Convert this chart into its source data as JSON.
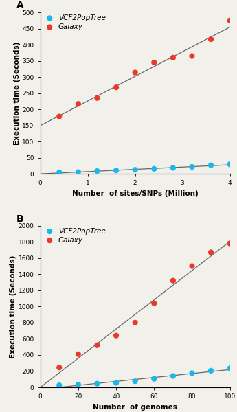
{
  "panel_A": {
    "title": "A",
    "xlabel": "Number  of sites/SNPs (Million)",
    "ylabel": "Execution time (Seconds)",
    "ylim": [
      0,
      500
    ],
    "yticks": [
      0,
      50,
      100,
      150,
      200,
      250,
      300,
      350,
      400,
      450,
      500
    ],
    "xlim": [
      0,
      4
    ],
    "xticks": [
      0,
      1,
      2,
      3,
      4
    ],
    "vcf_x": [
      0.4,
      0.8,
      1.2,
      1.6,
      2.0,
      2.4,
      2.8,
      3.2,
      3.6,
      4.0
    ],
    "vcf_y": [
      5,
      6,
      9,
      11,
      13,
      16,
      19,
      22,
      27,
      30
    ],
    "galaxy_x": [
      0.4,
      0.8,
      1.2,
      1.6,
      2.0,
      2.4,
      2.8,
      3.2,
      3.6,
      4.0
    ],
    "galaxy_y": [
      178,
      217,
      235,
      268,
      314,
      345,
      360,
      365,
      417,
      475
    ]
  },
  "panel_B": {
    "title": "B",
    "xlabel": "Number  of genomes",
    "ylabel": "Execution time (Seconds)",
    "ylim": [
      0,
      2000
    ],
    "yticks": [
      0,
      200,
      400,
      600,
      800,
      1000,
      1200,
      1400,
      1600,
      1800,
      2000
    ],
    "xlim": [
      0,
      100
    ],
    "xticks": [
      0,
      20,
      40,
      60,
      80,
      100
    ],
    "vcf_x": [
      10,
      20,
      30,
      40,
      50,
      60,
      70,
      80,
      90,
      100
    ],
    "vcf_y": [
      25,
      35,
      45,
      55,
      75,
      105,
      140,
      175,
      205,
      235
    ],
    "galaxy_x": [
      10,
      20,
      30,
      40,
      50,
      60,
      70,
      80,
      90,
      100
    ],
    "galaxy_y": [
      245,
      410,
      520,
      640,
      800,
      1040,
      1320,
      1500,
      1670,
      1780
    ]
  },
  "vcf_color": "#1ab7ea",
  "galaxy_color": "#e8392a",
  "line_color": "#666666",
  "bg_color": "#f2f0eb",
  "vcf_label": "VCF2PopTree",
  "galaxy_label": "Galaxy",
  "dot_size": 35,
  "legend_fontsize": 7.5,
  "axis_label_fontsize": 7.5,
  "tick_fontsize": 6.5,
  "panel_label_fontsize": 10
}
